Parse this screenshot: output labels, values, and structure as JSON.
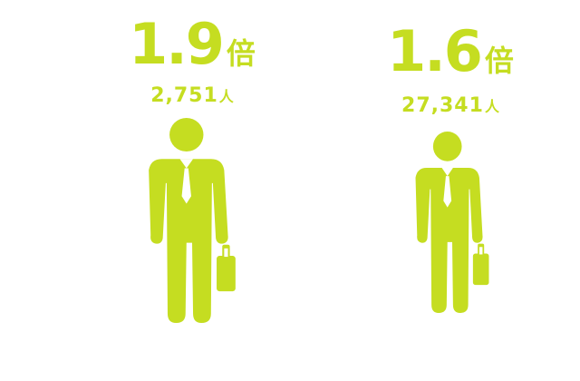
{
  "accent_color": "#c5dd21",
  "items": [
    {
      "ratio": "1.9",
      "ratio_unit": "倍",
      "count": "2,751",
      "count_unit": "人",
      "icon": "businessman-with-briefcase-icon"
    },
    {
      "ratio": "1.6",
      "ratio_unit": "倍",
      "count": "27,341",
      "count_unit": "人",
      "icon": "businessman-with-briefcase-icon"
    }
  ]
}
